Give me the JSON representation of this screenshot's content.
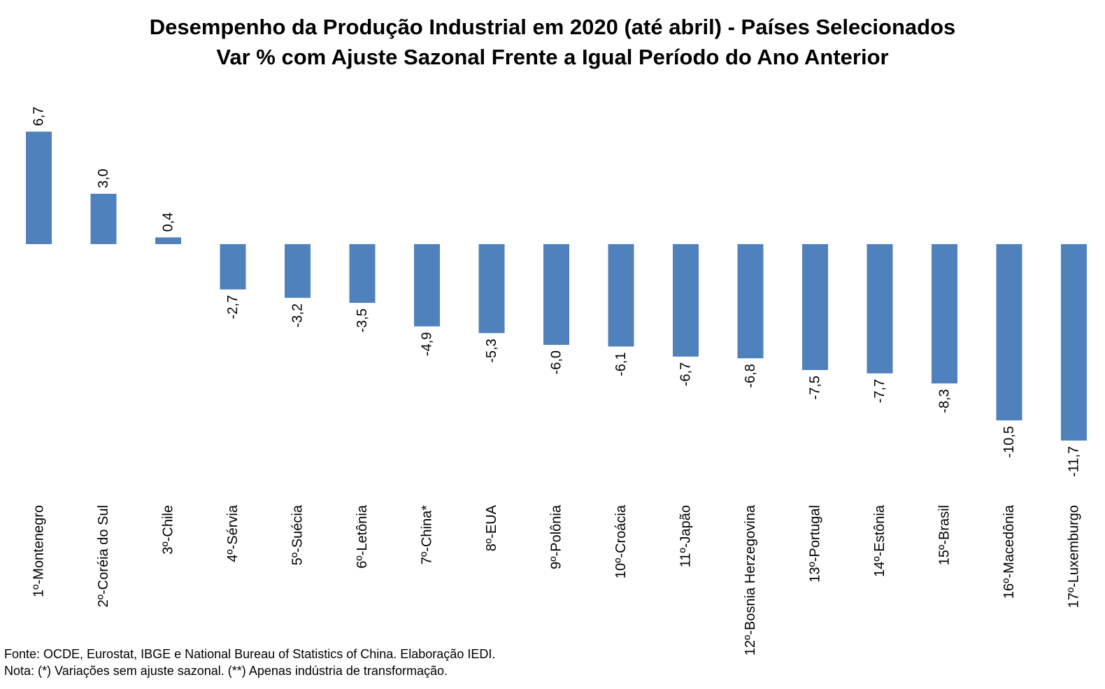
{
  "chart_data": {
    "type": "bar",
    "title": "Desempenho da Produção Industrial em 2020 (até abril) - Países Selecionados",
    "subtitle": "Var % com Ajuste Sazonal Frente a Igual Período do Ano Anterior",
    "categories": [
      "1º-Montenegro",
      "2º-Coréia do Sul",
      "3º-Chile",
      "4º-Sérvia",
      "5º-Suécia",
      "6º-Letônia",
      "7º-China*",
      "8º-EUA",
      "9º-Polônia",
      "10º-Croácia",
      "11º-Japão",
      "12º-Bosnia Herzegovina",
      "13º-Portugal",
      "14º-Estônia",
      "15º-Brasil",
      "16º-Macedônia",
      "17º-Luxemburgo"
    ],
    "values": [
      6.7,
      3.0,
      0.4,
      -2.7,
      -3.2,
      -3.5,
      -4.9,
      -5.3,
      -6.0,
      -6.1,
      -6.7,
      -6.8,
      -7.5,
      -7.7,
      -8.3,
      -10.5,
      -11.7
    ],
    "value_labels": [
      "6,7",
      "3,0",
      "0,4",
      "-2,7",
      "-3,2",
      "-3,5",
      "-4,9",
      "-5,3",
      "-6,0",
      "-6,1",
      "-6,7",
      "-6,8",
      "-7,5",
      "-7,7",
      "-8,3",
      "-10,5",
      "-11,7"
    ],
    "xlabel": "",
    "ylabel": "",
    "ylim": [
      -11.7,
      6.7
    ],
    "grid": false,
    "legend": "none",
    "bar_color": "#4F81BD"
  },
  "footer": {
    "source": "Fonte: OCDE, Eurostat, IBGE e National Bureau of Statistics of China. Elaboração IEDI.",
    "note": "Nota: (*) Variações sem ajuste sazonal. (**) Apenas indústria de transformação."
  }
}
